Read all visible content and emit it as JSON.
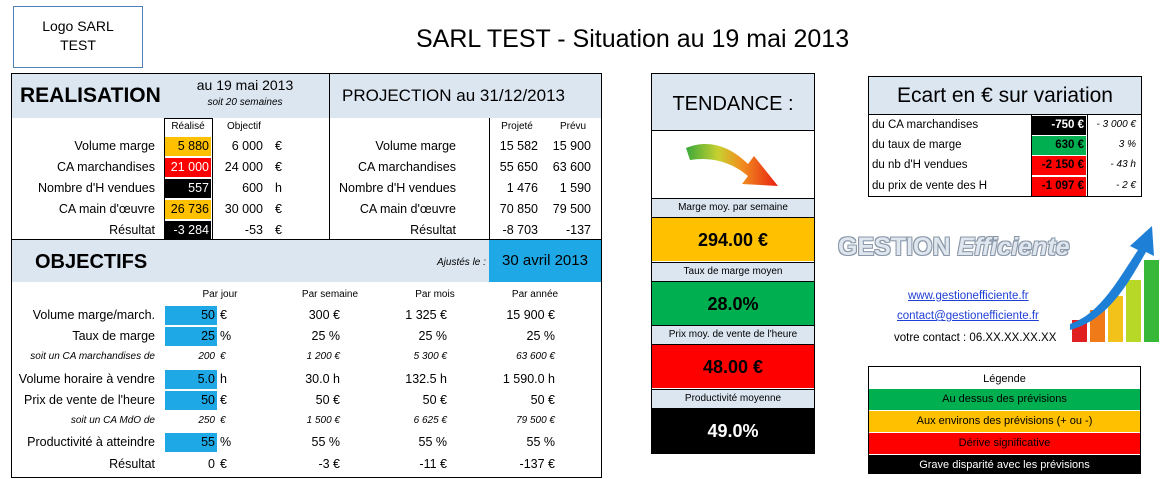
{
  "logo": "Logo SARL\nTEST",
  "title": "SARL TEST - Situation au 19 mai 2013",
  "realisation": {
    "heading": "REALISATION",
    "date": "au 19 mai 2013",
    "weeks": "soit 20 semaines",
    "col_realise": "Réalisé",
    "col_objectif": "Objectif",
    "rows": [
      {
        "label": "Volume marge",
        "realise": "5 880",
        "objectif": "6 000",
        "unit": "€",
        "color": "#ffc000",
        "fg": "#000"
      },
      {
        "label": "CA marchandises",
        "realise": "21 000",
        "objectif": "24 000",
        "unit": "€",
        "color": "#ff0000",
        "fg": "#fff"
      },
      {
        "label": "Nombre d'H vendues",
        "realise": "557",
        "objectif": "600",
        "unit": "h",
        "color": "#000000",
        "fg": "#fff"
      },
      {
        "label": "CA main d'œuvre",
        "realise": "26 736",
        "objectif": "30 000",
        "unit": "€",
        "color": "#ffc000",
        "fg": "#000"
      },
      {
        "label": "Résultat",
        "realise": "-3 284",
        "objectif": "-53",
        "unit": "€",
        "color": "#000000",
        "fg": "#fff"
      }
    ]
  },
  "projection": {
    "heading": "PROJECTION au 31/12/2013",
    "col_projete": "Projeté",
    "col_prevu": "Prévu",
    "rows": [
      {
        "label": "Volume marge",
        "projete": "15 582",
        "prevu": "15 900"
      },
      {
        "label": "CA marchandises",
        "projete": "55 650",
        "prevu": "63 600"
      },
      {
        "label": "Nombre d'H vendues",
        "projete": "1 476",
        "prevu": "1 590"
      },
      {
        "label": "CA main d'œuvre",
        "projete": "70 850",
        "prevu": "79 500"
      },
      {
        "label": "Résultat",
        "projete": "-8 703",
        "prevu": "-137"
      }
    ]
  },
  "objectifs": {
    "heading": "OBJECTIFS",
    "ajustes_label": "Ajustés le :",
    "ajustes_date": "30 avril 2013",
    "cols": [
      "Par jour",
      "Par semaine",
      "Par mois",
      "Par année"
    ],
    "rows": [
      {
        "label": "Volume marge/march.",
        "small": false,
        "jour": "50",
        "jour_unit": "€",
        "semaine": "300 €",
        "mois": "1 325 €",
        "annee": "15 900 €",
        "input": true
      },
      {
        "label": "Taux de marge",
        "small": false,
        "jour": "25",
        "jour_unit": "%",
        "semaine": "25 %",
        "mois": "25 %",
        "annee": "25 %",
        "input": true
      },
      {
        "label": "soit un CA marchandises de",
        "small": true,
        "jour": "200",
        "jour_unit": "€",
        "semaine": "1 200 €",
        "mois": "5 300 €",
        "annee": "63 600 €",
        "input": false
      },
      {
        "label": "Volume horaire à vendre",
        "small": false,
        "jour": "5.0",
        "jour_unit": "h",
        "semaine": "30.0 h",
        "mois": "132.5 h",
        "annee": "1 590.0 h",
        "input": true
      },
      {
        "label": "Prix de vente de l'heure",
        "small": false,
        "jour": "50",
        "jour_unit": "€",
        "semaine": "50 €",
        "mois": "50 €",
        "annee": "50 €",
        "input": true
      },
      {
        "label": "soit un CA MdO de",
        "small": true,
        "jour": "250",
        "jour_unit": "€",
        "semaine": "1 500 €",
        "mois": "6 625 €",
        "annee": "79 500 €",
        "input": false
      },
      {
        "label": "Productivité à atteindre",
        "small": false,
        "jour": "55",
        "jour_unit": "%",
        "semaine": "55 %",
        "mois": "55 %",
        "annee": "55 %",
        "input": true
      },
      {
        "label": "Résultat",
        "small": false,
        "jour": "0",
        "jour_unit": "€",
        "semaine": "-3 €",
        "mois": "-11 €",
        "annee": "-137 €",
        "input": false
      }
    ]
  },
  "tendance": {
    "heading": "TENDANCE :",
    "items": [
      {
        "label": "Marge moy. par semaine",
        "value": "294.00 €",
        "color": "#ffc000",
        "fg": "#000"
      },
      {
        "label": "Taux de marge moyen",
        "value": "28.0%",
        "color": "#00b050",
        "fg": "#000"
      },
      {
        "label": "Prix moy. de vente de l'heure",
        "value": "48.00 €",
        "color": "#ff0000",
        "fg": "#000"
      },
      {
        "label": "Productivité moyenne",
        "value": "49.0%",
        "color": "#000000",
        "fg": "#fff"
      }
    ]
  },
  "ecart": {
    "heading": "Ecart en € sur variation",
    "rows": [
      {
        "label": "du CA marchandises",
        "value": "-750 €",
        "variation": "- 3 000 €",
        "color": "#000000",
        "fg": "#fff"
      },
      {
        "label": "du taux de marge",
        "value": "630 €",
        "variation": "3 %",
        "color": "#00b050",
        "fg": "#000"
      },
      {
        "label": "du nb d'H vendues",
        "value": "-2 150 €",
        "variation": "- 43 h",
        "color": "#ff0000",
        "fg": "#000"
      },
      {
        "label": "du prix de vente des H",
        "value": "-1 097 €",
        "variation": "- 2 €",
        "color": "#ff0000",
        "fg": "#000"
      }
    ]
  },
  "brand": {
    "name_part1": "GESTION",
    "name_part2": "Efficiente",
    "website": "www.gestionefficiente.fr",
    "email": "contact@gestionefficiente.fr",
    "contact": "votre contact : 06.XX.XX.XX.XX"
  },
  "legend": {
    "title": "Légende",
    "items": [
      {
        "label": "Au dessus des prévisions",
        "color": "#00b050",
        "fg": "#000"
      },
      {
        "label": "Aux environs des prévisions (+ ou -)",
        "color": "#ffc000",
        "fg": "#000"
      },
      {
        "label": "Dérive significative",
        "color": "#ff0000",
        "fg": "#000"
      },
      {
        "label": "Grave disparité avec les prévisions",
        "color": "#000000",
        "fg": "#fff"
      }
    ]
  },
  "colors": {
    "header_blue": "#dce6f1",
    "input_blue": "#1fa8e6",
    "link_blue": "#1f3fd6"
  }
}
